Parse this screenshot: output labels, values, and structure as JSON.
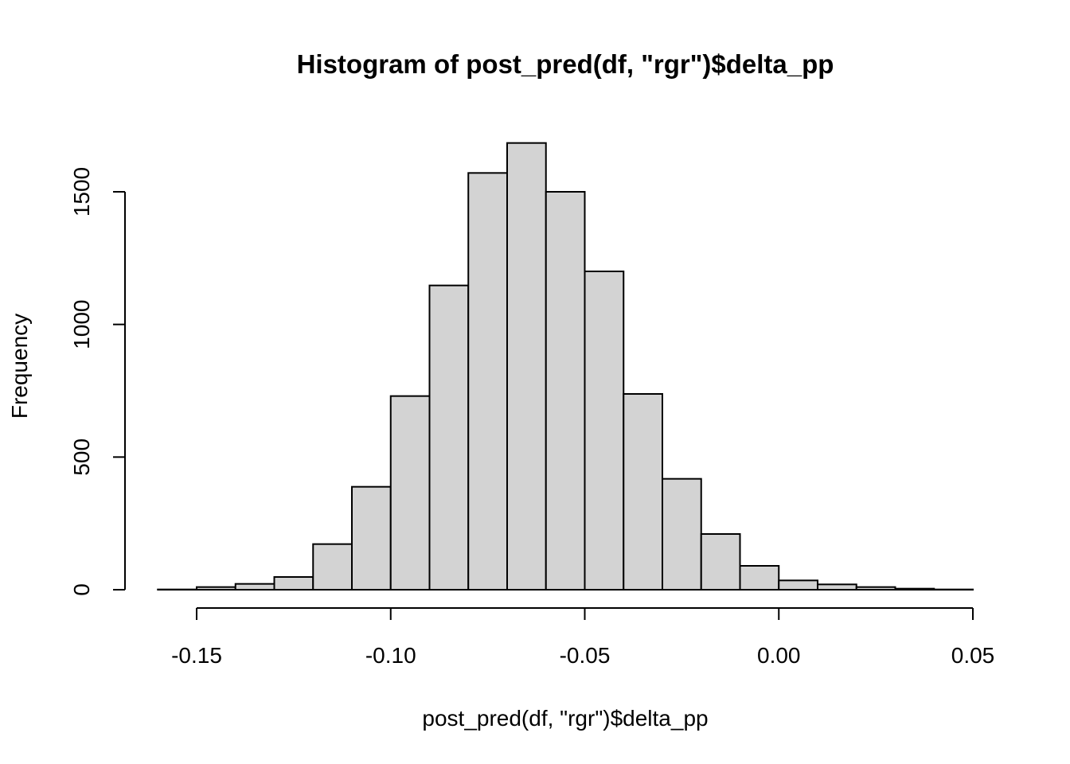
{
  "chart_data": {
    "type": "bar",
    "title": "Histogram of post_pred(df, \"rgr\")$delta_pp",
    "xlabel": "post_pred(df, \"rgr\")$delta_pp",
    "ylabel": "Frequency",
    "bin_edges": [
      -0.16,
      -0.15,
      -0.14,
      -0.13,
      -0.12,
      -0.11,
      -0.1,
      -0.09,
      -0.08,
      -0.07,
      -0.06,
      -0.05,
      -0.04,
      -0.03,
      -0.02,
      -0.01,
      0.0,
      0.01,
      0.02,
      0.03,
      0.04,
      0.05
    ],
    "values": [
      1,
      10,
      22,
      48,
      172,
      388,
      730,
      1147,
      1571,
      1684,
      1500,
      1200,
      738,
      418,
      210,
      90,
      35,
      20,
      10,
      4,
      1
    ],
    "xlim": [
      -0.16,
      0.05
    ],
    "ylim": [
      0,
      1684
    ],
    "x_ticks": [
      {
        "value": -0.15,
        "label": "-0.15"
      },
      {
        "value": -0.1,
        "label": "-0.10"
      },
      {
        "value": -0.05,
        "label": "-0.05"
      },
      {
        "value": 0.0,
        "label": "0.00"
      },
      {
        "value": 0.05,
        "label": "0.05"
      }
    ],
    "y_ticks": [
      {
        "value": 0,
        "label": "0"
      },
      {
        "value": 500,
        "label": "500"
      },
      {
        "value": 1000,
        "label": "1000"
      },
      {
        "value": 1500,
        "label": "1500"
      }
    ],
    "bar_fill": "#d3d3d3",
    "bar_stroke": "#000000",
    "grid": false,
    "legend": "none"
  }
}
